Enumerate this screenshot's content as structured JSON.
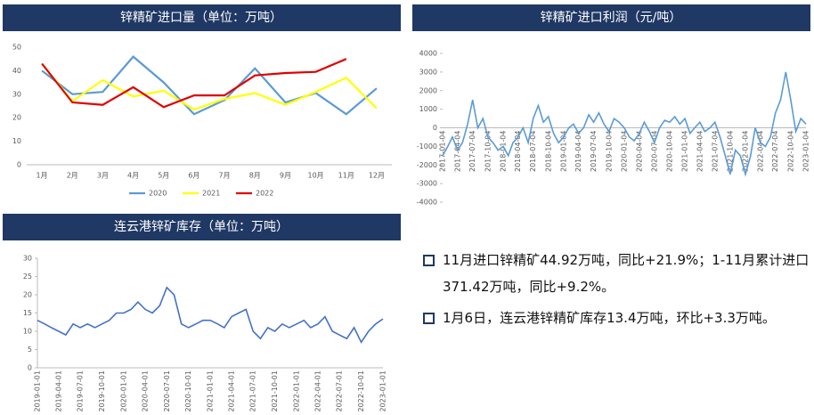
{
  "chart_data": [
    {
      "type": "line",
      "title": "锌精矿进口量（单位：万吨）",
      "categories": [
        "1月",
        "2月",
        "3月",
        "4月",
        "5月",
        "6月",
        "7月",
        "8月",
        "9月",
        "10月",
        "11月",
        "12月"
      ],
      "series": [
        {
          "name": "2020",
          "color": "#5b9bd5",
          "values": [
            40,
            30,
            31,
            46,
            35,
            21.5,
            27.5,
            41,
            26.5,
            30.5,
            21.5,
            32.5
          ]
        },
        {
          "name": "2021",
          "color": "#ffff00",
          "values": [
            43,
            27,
            36,
            29,
            31.5,
            23.5,
            28,
            30.5,
            25.5,
            31,
            37,
            24
          ]
        },
        {
          "name": "2022",
          "color": "#e00000",
          "values": [
            43,
            26.5,
            25.5,
            33,
            24.5,
            29.5,
            29.5,
            38,
            39,
            39.5,
            45,
            null
          ]
        }
      ],
      "ylim": [
        0,
        50
      ],
      "yticks": [
        0,
        10,
        20,
        30,
        40,
        50
      ],
      "legend": "bottom"
    },
    {
      "type": "line",
      "title": "锌精矿进口利润（元/吨）",
      "color": "#5b9bd5",
      "x": [
        "2017-01-04",
        "2017-02-04",
        "2017-03-04",
        "2017-04-04",
        "2017-05-04",
        "2017-06-04",
        "2017-07-04",
        "2017-08-04",
        "2017-09-04",
        "2017-10-04",
        "2017-11-04",
        "2017-12-04",
        "2018-01-04",
        "2018-02-04",
        "2018-03-04",
        "2018-04-04",
        "2018-05-04",
        "2018-06-04",
        "2018-07-04",
        "2018-08-04",
        "2018-09-04",
        "2018-10-04",
        "2018-11-04",
        "2018-12-04",
        "2019-01-04",
        "2019-02-04",
        "2019-03-04",
        "2019-04-04",
        "2019-05-04",
        "2019-06-04",
        "2019-07-04",
        "2019-08-04",
        "2019-09-04",
        "2019-10-04",
        "2019-11-04",
        "2019-12-04",
        "2020-01-04",
        "2020-02-04",
        "2020-03-04",
        "2020-04-04",
        "2020-05-04",
        "2020-06-04",
        "2020-07-04",
        "2020-08-04",
        "2020-09-04",
        "2020-10-04",
        "2020-11-04",
        "2020-12-04",
        "2021-01-04",
        "2021-02-04",
        "2021-03-04",
        "2021-04-04",
        "2021-05-04",
        "2021-06-04",
        "2021-07-04",
        "2021-08-04",
        "2021-09-04",
        "2021-10-04",
        "2021-11-04",
        "2021-12-04",
        "2022-01-04",
        "2022-02-04",
        "2022-03-04",
        "2022-04-04",
        "2022-05-04",
        "2022-06-04",
        "2022-07-04",
        "2022-08-04",
        "2022-09-04",
        "2022-10-04",
        "2022-11-04",
        "2022-12-04",
        "2023-01-04"
      ],
      "values": [
        -1500,
        -1000,
        -500,
        -1200,
        -800,
        200,
        1500,
        0,
        500,
        -500,
        -800,
        -1200,
        -1000,
        -1500,
        -800,
        -500,
        0,
        -800,
        500,
        1200,
        300,
        600,
        -300,
        -800,
        -500,
        0,
        200,
        -300,
        0,
        700,
        300,
        800,
        200,
        -200,
        500,
        300,
        0,
        -500,
        -700,
        -300,
        300,
        -200,
        -800,
        0,
        400,
        300,
        600,
        200,
        500,
        -300,
        0,
        300,
        -200,
        0,
        300,
        -500,
        -1500,
        -2500,
        -1200,
        -1500,
        -2500,
        -1500,
        0,
        -800,
        -1000,
        -500,
        800,
        1500,
        3000,
        1500,
        -200,
        500,
        200
      ],
      "xticks": [
        "2017-01-04",
        "2017-04-04",
        "2017-07-04",
        "2017-10-04",
        "2018-01-04",
        "2018-04-04",
        "2018-07-04",
        "2018-10-04",
        "2019-01-04",
        "2019-04-04",
        "2019-07-04",
        "2019-10-04",
        "2020-01-04",
        "2020-04-04",
        "2020-07-04",
        "2020-10-04",
        "2021-01-04",
        "2021-04-04",
        "2021-07-04",
        "2021-10-04",
        "2022-01-04",
        "2022-04-04",
        "2022-07-04",
        "2022-10-04",
        "2023-01-04"
      ],
      "ylim": [
        -4000,
        4000
      ],
      "yticks": [
        -4000,
        -3000,
        -2000,
        -1000,
        0,
        1000,
        2000,
        3000,
        4000
      ]
    },
    {
      "type": "line",
      "title": "连云港锌矿库存（单位：万吨）",
      "color": "#4472c4",
      "x": [
        "2019-01-01",
        "2019-02-01",
        "2019-03-01",
        "2019-04-01",
        "2019-05-01",
        "2019-06-01",
        "2019-07-01",
        "2019-08-01",
        "2019-09-01",
        "2019-10-01",
        "2019-11-01",
        "2019-12-01",
        "2020-01-01",
        "2020-02-01",
        "2020-03-01",
        "2020-04-01",
        "2020-05-01",
        "2020-06-01",
        "2020-07-01",
        "2020-08-01",
        "2020-09-01",
        "2020-10-01",
        "2020-11-01",
        "2020-12-01",
        "2021-01-01",
        "2021-02-01",
        "2021-03-01",
        "2021-04-01",
        "2021-05-01",
        "2021-06-01",
        "2021-07-01",
        "2021-08-01",
        "2021-09-01",
        "2021-10-01",
        "2021-11-01",
        "2021-12-01",
        "2022-01-01",
        "2022-02-01",
        "2022-03-01",
        "2022-04-01",
        "2022-05-01",
        "2022-06-01",
        "2022-07-01",
        "2022-08-01",
        "2022-09-01",
        "2022-10-01",
        "2022-11-01",
        "2022-12-01",
        "2023-01-01"
      ],
      "values": [
        13,
        12,
        11,
        10,
        9,
        12,
        11,
        12,
        11,
        12,
        13,
        15,
        15,
        16,
        18,
        16,
        15,
        17,
        22,
        20,
        12,
        11,
        12,
        13,
        13,
        12,
        11,
        14,
        15,
        16,
        10,
        8,
        11,
        10,
        12,
        11,
        12,
        13,
        11,
        12,
        14,
        10,
        9,
        8,
        11,
        7,
        10,
        12,
        13.4
      ],
      "xticks": [
        "2019-01-01",
        "2019-04-01",
        "2019-07-01",
        "2019-10-01",
        "2020-01-01",
        "2020-04-01",
        "2020-07-01",
        "2020-10-01",
        "2021-01-01",
        "2021-04-01",
        "2021-07-01",
        "2021-10-01",
        "2022-01-01",
        "2022-04-01",
        "2022-07-01",
        "2022-10-01",
        "2023-01-01"
      ],
      "ylim": [
        0,
        30
      ],
      "yticks": [
        0,
        5,
        10,
        15,
        20,
        25,
        30
      ]
    }
  ],
  "notes": [
    "11月进口锌精矿44.92万吨，同比+21.9%；1-11月累计进口371.42万吨，同比+9.2%。",
    "1月6日，连云港锌精矿库存13.4万吨，环比+3.3万吨。"
  ]
}
